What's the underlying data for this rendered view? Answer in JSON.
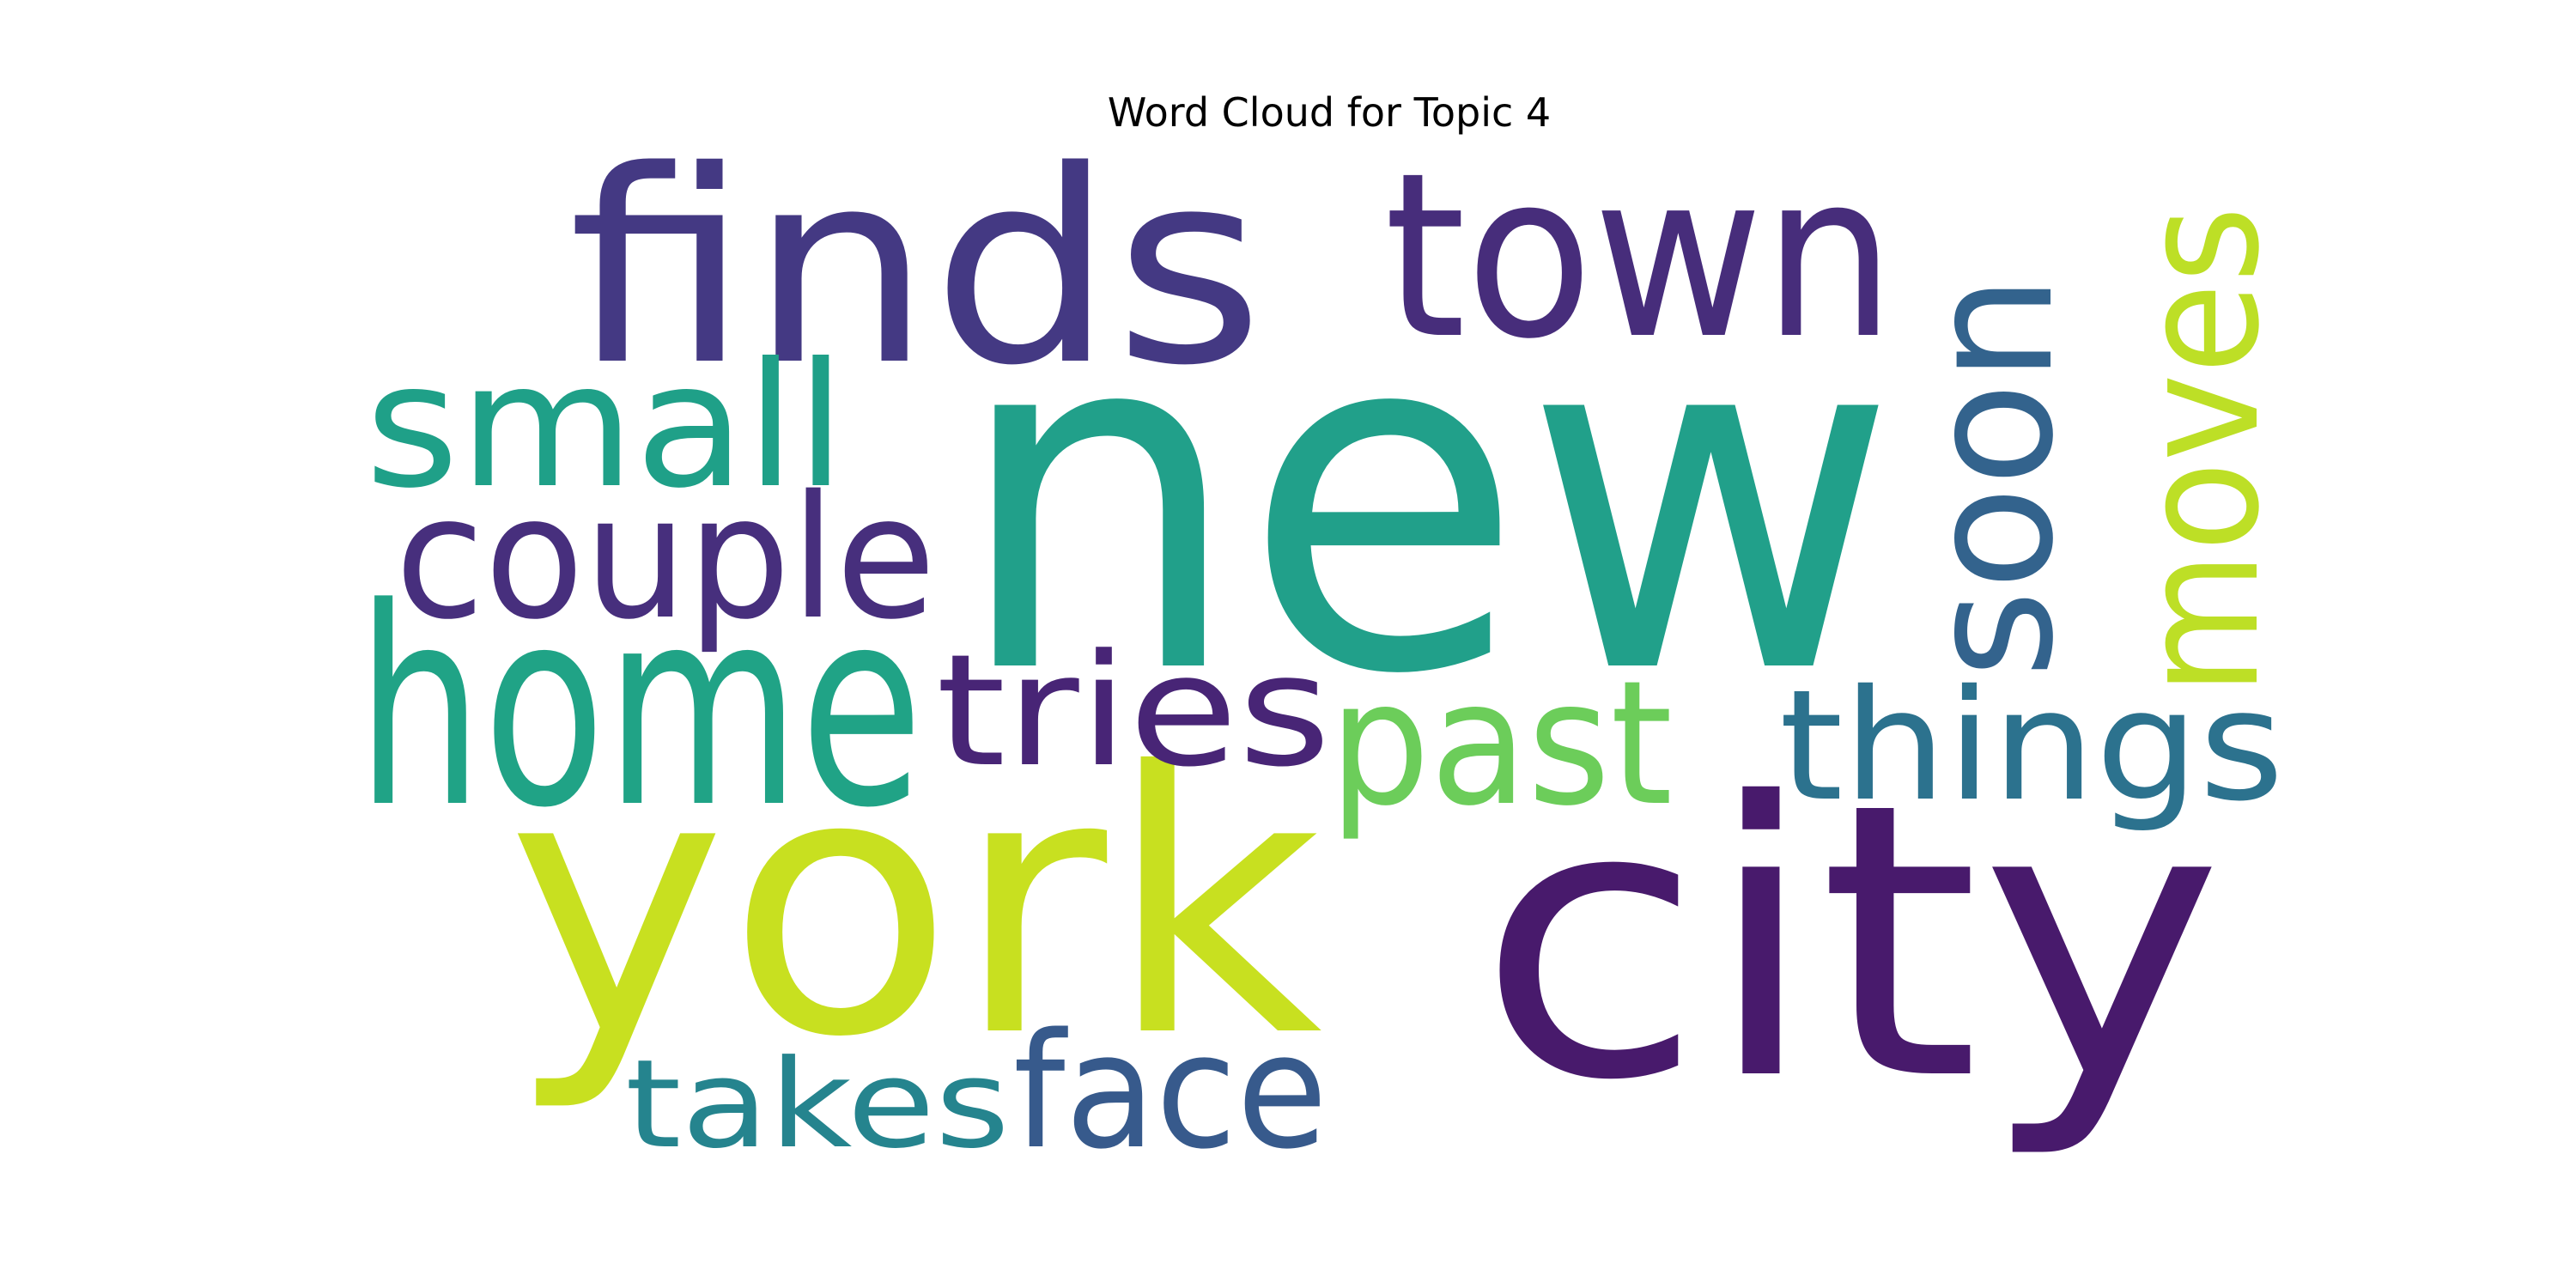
{
  "title": "Word Cloud for Topic 4",
  "words": [
    {
      "text": "new",
      "color": "#21a08a",
      "orientation": "horizontal"
    },
    {
      "text": "finds",
      "color": "#443983",
      "orientation": "horizontal"
    },
    {
      "text": "town",
      "color": "#472d7b",
      "orientation": "horizontal"
    },
    {
      "text": "york",
      "color": "#c8e020",
      "orientation": "horizontal"
    },
    {
      "text": "city",
      "color": "#481a6c",
      "orientation": "horizontal"
    },
    {
      "text": "home",
      "color": "#20a386",
      "orientation": "horizontal"
    },
    {
      "text": "small",
      "color": "#1fa088",
      "orientation": "horizontal"
    },
    {
      "text": "couple",
      "color": "#472f7d",
      "orientation": "horizontal"
    },
    {
      "text": "soon",
      "color": "#33638d",
      "orientation": "vertical"
    },
    {
      "text": "moves",
      "color": "#bddf26",
      "orientation": "vertical"
    },
    {
      "text": "tries",
      "color": "#482576",
      "orientation": "horizontal"
    },
    {
      "text": "past",
      "color": "#6ccd5a",
      "orientation": "horizontal"
    },
    {
      "text": "things",
      "color": "#2c728e",
      "orientation": "horizontal"
    },
    {
      "text": "takes",
      "color": "#25848e",
      "orientation": "horizontal"
    },
    {
      "text": "face",
      "color": "#375a8c",
      "orientation": "horizontal"
    }
  ]
}
